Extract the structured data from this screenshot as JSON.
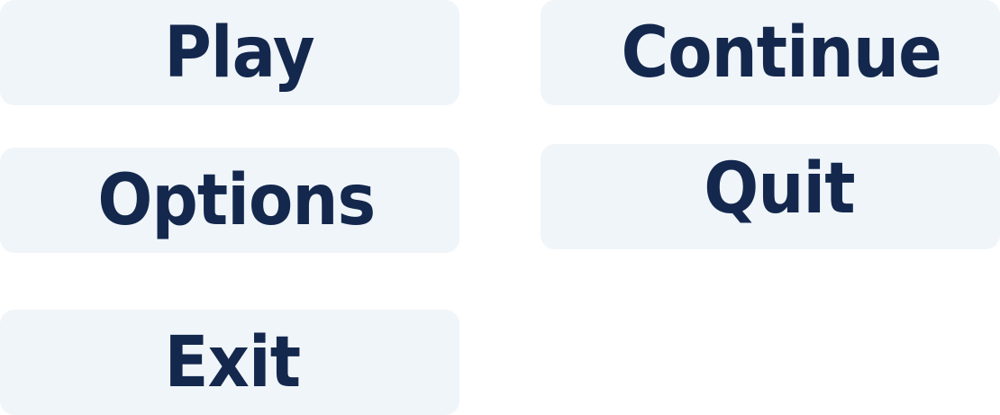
{
  "menu": {
    "play_label": "Play",
    "continue_label": "Continue",
    "options_label": "Options",
    "quit_label": "Quit",
    "exit_label": "Exit"
  },
  "colors": {
    "button_background": "#f0f5f9",
    "button_text": "#14284e",
    "page_background": "#ffffff"
  }
}
